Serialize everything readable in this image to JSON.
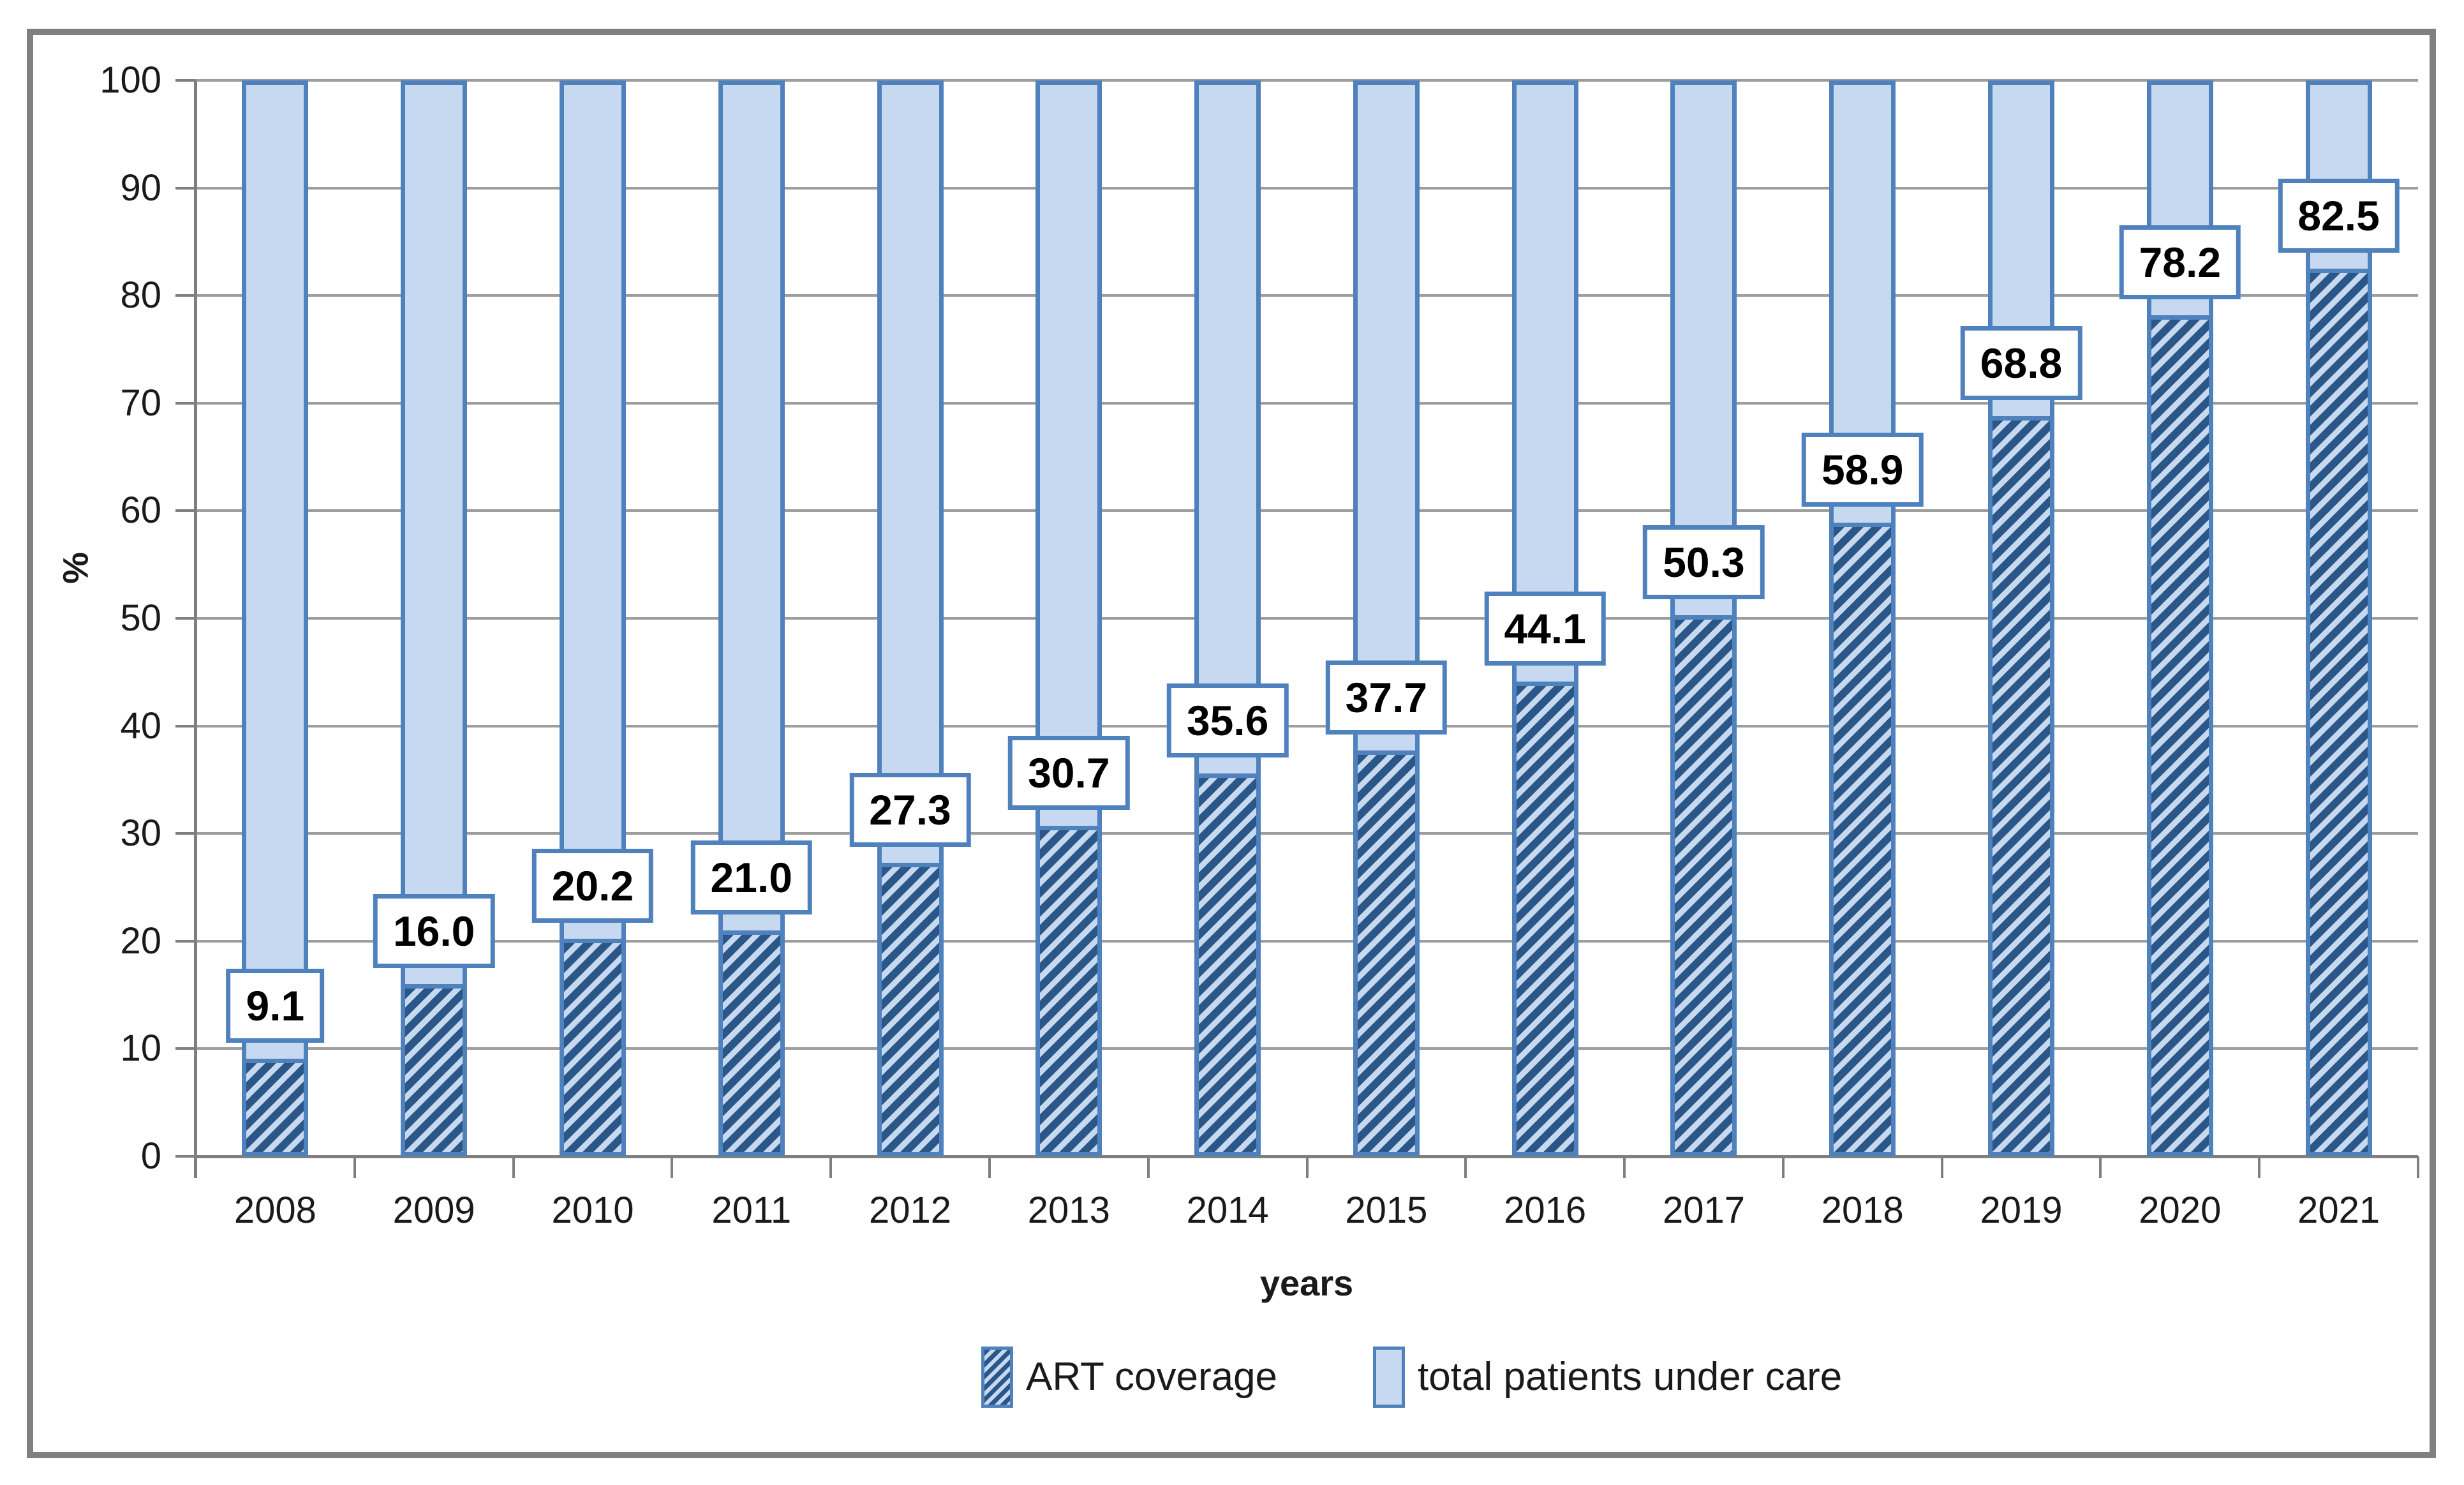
{
  "chart_data": {
    "type": "bar",
    "subtype": "stacked_100_percent",
    "title": "",
    "xlabel": "years",
    "ylabel": "%",
    "categories": [
      "2008",
      "2009",
      "2010",
      "2011",
      "2012",
      "2013",
      "2014",
      "2015",
      "2016",
      "2017",
      "2018",
      "2019",
      "2020",
      "2021"
    ],
    "series": [
      {
        "name": "ART coverage",
        "style": "hatched-diagonal",
        "values": [
          9.1,
          16.0,
          20.2,
          21.0,
          27.3,
          30.7,
          35.6,
          37.7,
          44.1,
          50.3,
          58.9,
          68.8,
          78.2,
          82.5
        ]
      },
      {
        "name": "total patients under care",
        "style": "solid-light",
        "values": [
          90.9,
          84.0,
          79.8,
          79.0,
          72.7,
          69.3,
          64.4,
          62.3,
          55.9,
          49.7,
          41.1,
          31.2,
          21.8,
          17.5
        ]
      }
    ],
    "data_labels": [
      "9.1",
      "16.0",
      "20.2",
      "21.0",
      "27.3",
      "30.7",
      "35.6",
      "37.7",
      "44.1",
      "50.3",
      "58.9",
      "68.8",
      "78.2",
      "82.5"
    ],
    "ylim": [
      0,
      100
    ],
    "yticks": [
      0,
      10,
      20,
      30,
      40,
      50,
      60,
      70,
      80,
      90,
      100
    ],
    "ytick_labels": [
      "0",
      "10",
      "20",
      "30",
      "40",
      "50",
      "60",
      "70",
      "80",
      "90",
      "100"
    ],
    "grid": "horizontal",
    "legend_position": "bottom"
  },
  "colors": {
    "bar_fill_light": "#C6D9F1",
    "bar_border": "#4F81BD",
    "hatch_stripe": "#2A5787",
    "gridline": "#9D9D9D",
    "axis": "#7F7F7F",
    "frame": "#808080",
    "label_box_bg": "#FFFFFF",
    "text": "#1A1A1A"
  }
}
